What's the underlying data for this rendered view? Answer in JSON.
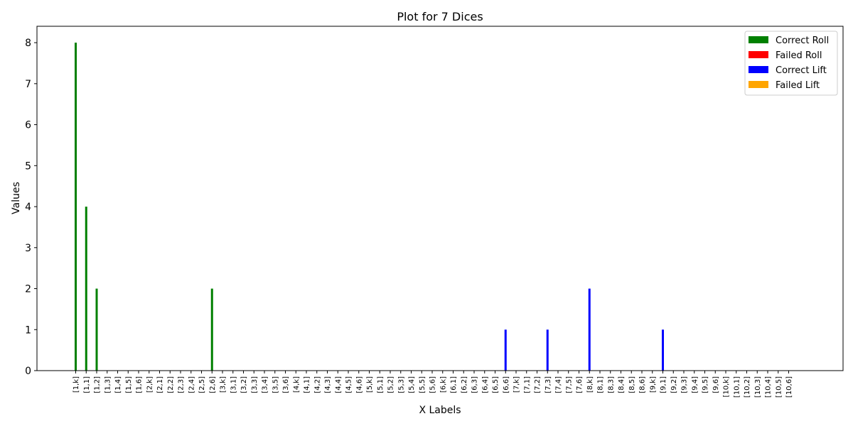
{
  "chart_data": {
    "type": "bar",
    "title": "Plot for 7 Dices",
    "xlabel": "X Labels",
    "ylabel": "Values",
    "ylim": [
      0,
      8.4
    ],
    "yticks": [
      0,
      1,
      2,
      3,
      4,
      5,
      6,
      7,
      8
    ],
    "grid": false,
    "legend_position": "top-right",
    "categories": [
      "[1,k]",
      "[1,1]",
      "[1,2]",
      "[1,3]",
      "[1,4]",
      "[1,5]",
      "[1,6]",
      "[2,k]",
      "[2,1]",
      "[2,2]",
      "[2,3]",
      "[2,4]",
      "[2,5]",
      "[2,6]",
      "[3,k]",
      "[3,1]",
      "[3,2]",
      "[3,3]",
      "[3,4]",
      "[3,5]",
      "[3,6]",
      "[4,k]",
      "[4,1]",
      "[4,2]",
      "[4,3]",
      "[4,4]",
      "[4,5]",
      "[4,6]",
      "[5,k]",
      "[5,1]",
      "[5,2]",
      "[5,3]",
      "[5,4]",
      "[5,5]",
      "[5,6]",
      "[6,k]",
      "[6,1]",
      "[6,2]",
      "[6,3]",
      "[6,4]",
      "[6,5]",
      "[6,6]",
      "[7,k]",
      "[7,1]",
      "[7,2]",
      "[7,3]",
      "[7,4]",
      "[7,5]",
      "[7,6]",
      "[8,k]",
      "[8,1]",
      "[8,3]",
      "[8,4]",
      "[8,5]",
      "[8,6]",
      "[9,k]",
      "[9,1]",
      "[9,2]",
      "[9,3]",
      "[9,4]",
      "[9,5]",
      "[9,6]",
      "[10,k]",
      "[10,1]",
      "[10,2]",
      "[10,3]",
      "[10,4]",
      "[10,5]",
      "[10,6]"
    ],
    "series": [
      {
        "name": "Correct Roll",
        "color": "#008000",
        "values": [
          8,
          4,
          2,
          0,
          0,
          0,
          0,
          0,
          0,
          0,
          0,
          0,
          0,
          2,
          0,
          0,
          0,
          0,
          0,
          0,
          0,
          0,
          0,
          0,
          0,
          0,
          0,
          0,
          0,
          0,
          0,
          0,
          0,
          0,
          0,
          0,
          0,
          0,
          0,
          0,
          0,
          0,
          0,
          0,
          0,
          0,
          0,
          0,
          0,
          0,
          0,
          0,
          0,
          0,
          0,
          0,
          0,
          0,
          0,
          0,
          0,
          0,
          0,
          0,
          0,
          0,
          0,
          0,
          0
        ]
      },
      {
        "name": "Failed Roll",
        "color": "#ff0000",
        "values": [
          0,
          0,
          0,
          0,
          0,
          0,
          0,
          0,
          0,
          0,
          0,
          0,
          0,
          0,
          0,
          0,
          0,
          0,
          0,
          0,
          0,
          0,
          0,
          0,
          0,
          0,
          0,
          0,
          0,
          0,
          0,
          0,
          0,
          0,
          0,
          0,
          0,
          0,
          0,
          0,
          0,
          0,
          0,
          0,
          0,
          0,
          0,
          0,
          0,
          0,
          0,
          0,
          0,
          0,
          0,
          0,
          0,
          0,
          0,
          0,
          0,
          0,
          0,
          0,
          0,
          0,
          0,
          0,
          0
        ]
      },
      {
        "name": "Correct Lift",
        "color": "#0000ff",
        "values": [
          0,
          0,
          0,
          0,
          0,
          0,
          0,
          0,
          0,
          0,
          0,
          0,
          0,
          0,
          0,
          0,
          0,
          0,
          0,
          0,
          0,
          0,
          0,
          0,
          0,
          0,
          0,
          0,
          0,
          0,
          0,
          0,
          0,
          0,
          0,
          0,
          0,
          0,
          0,
          0,
          0,
          1,
          0,
          0,
          0,
          1,
          0,
          0,
          0,
          2,
          0,
          0,
          0,
          0,
          0,
          0,
          1,
          0,
          0,
          0,
          0,
          0,
          0,
          0,
          0,
          0,
          0,
          0,
          0
        ]
      },
      {
        "name": "Failed Lift",
        "color": "#ffa500",
        "values": [
          0,
          0,
          0,
          0,
          0,
          0,
          0,
          0,
          0,
          0,
          0,
          0,
          0,
          0,
          0,
          0,
          0,
          0,
          0,
          0,
          0,
          0,
          0,
          0,
          0,
          0,
          0,
          0,
          0,
          0,
          0,
          0,
          0,
          0,
          0,
          0,
          0,
          0,
          0,
          0,
          0,
          0,
          0,
          0,
          0,
          0,
          0,
          0,
          0,
          0,
          0,
          0,
          0,
          0,
          0,
          0,
          0,
          0,
          0,
          0,
          0,
          0,
          0,
          0,
          0,
          0,
          0,
          0,
          0
        ]
      }
    ]
  }
}
